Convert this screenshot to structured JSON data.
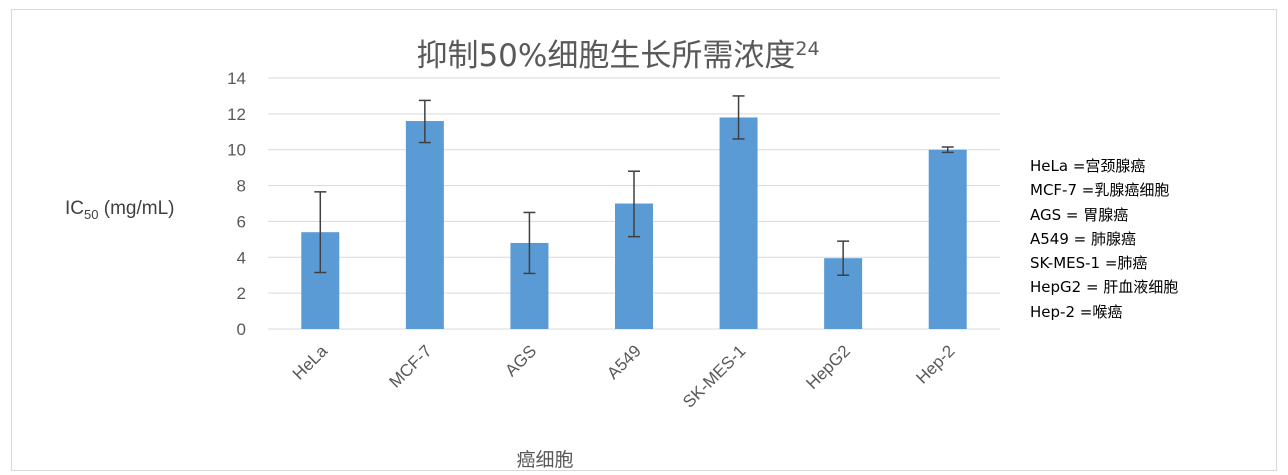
{
  "chart_data": {
    "type": "bar",
    "title": "抑制50%细胞生长所需浓度",
    "title_superscript": "24",
    "xlabel": "癌细胞",
    "ylabel_main": "IC",
    "ylabel_sub": "50",
    "ylabel_unit": " (mg/mL)",
    "categories": [
      "HeLa",
      "MCF-7",
      "AGS",
      "A549",
      "SK-MES-1",
      "HepG2",
      "Hep-2"
    ],
    "values": [
      5.4,
      11.6,
      4.8,
      7.0,
      11.8,
      3.95,
      10.0
    ],
    "error_low": [
      3.15,
      10.4,
      3.1,
      5.15,
      10.6,
      3.0,
      9.85
    ],
    "error_high": [
      7.65,
      12.75,
      6.5,
      8.8,
      13.0,
      4.9,
      10.15
    ],
    "ylim": [
      0,
      14
    ],
    "yticks": [
      0,
      2,
      4,
      6,
      8,
      10,
      12,
      14
    ],
    "grid": true,
    "bar_color": "#5b9bd5",
    "grid_color": "#d9d9d9",
    "error_color": "#404040"
  },
  "legend_notes": [
    "HeLa =宫颈腺癌",
    "MCF-7 =乳腺癌细胞",
    "AGS = 胃腺癌",
    "A549 = 肺腺癌",
    "SK-MES-1 =肺癌",
    "HepG2 = 肝血液细胞",
    "Hep-2 =喉癌"
  ]
}
